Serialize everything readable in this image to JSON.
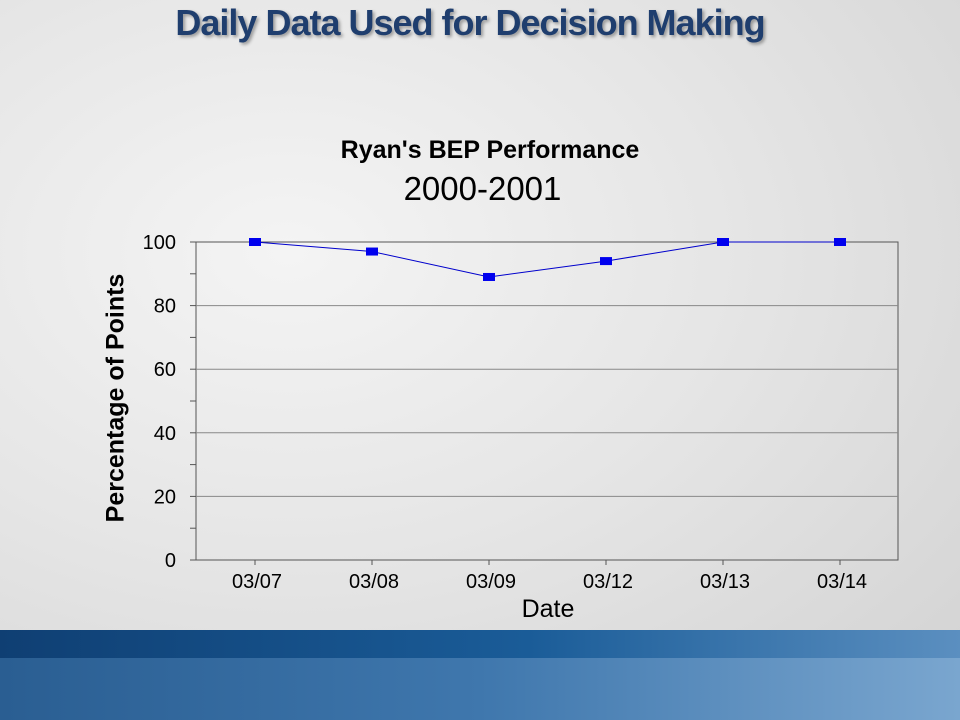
{
  "slide": {
    "title": "Daily Data Used for Decision Making"
  },
  "chart_data": {
    "type": "line",
    "title": "Ryan's BEP Performance",
    "subtitle": "2000-2001",
    "xlabel": "Date",
    "ylabel": "Percentage of Points",
    "categories": [
      "03/07",
      "03/08",
      "03/09",
      "03/12",
      "03/13",
      "03/14"
    ],
    "series": [
      {
        "values": [
          100,
          97,
          89,
          94,
          100,
          100
        ]
      }
    ],
    "ylim": [
      0,
      100
    ],
    "yticks": [
      0,
      20,
      40,
      60,
      80,
      100
    ],
    "grid": true,
    "legend": "none",
    "colors": {
      "line": "#0000cc",
      "marker": "#0000ee",
      "grid": "#888888"
    }
  }
}
